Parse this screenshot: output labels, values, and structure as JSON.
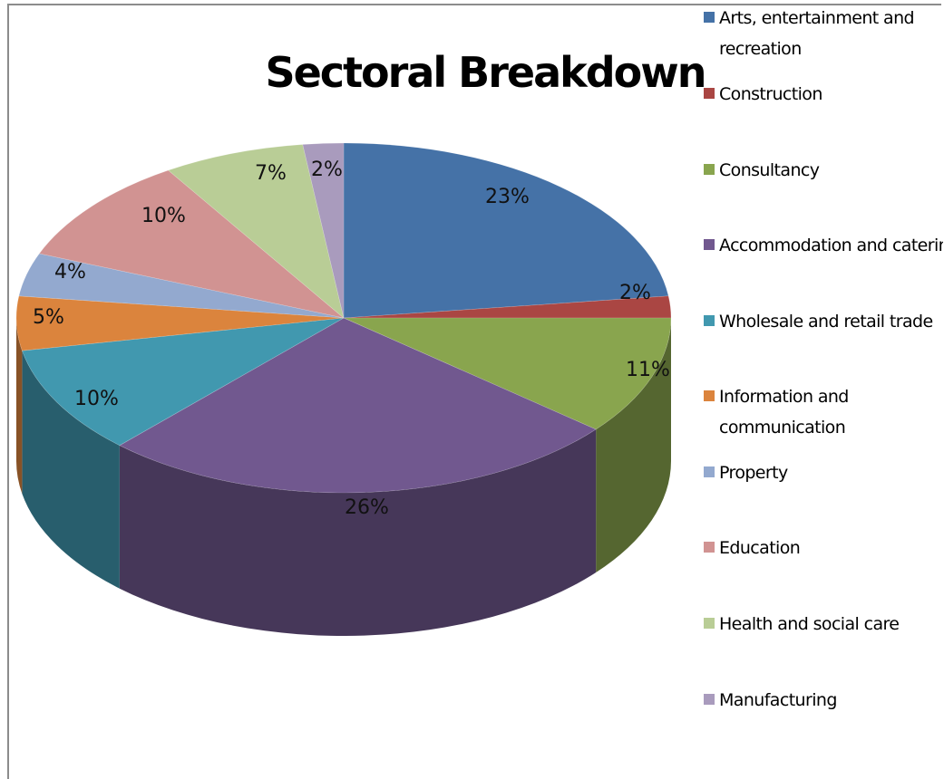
{
  "chart_data": {
    "type": "pie",
    "title": "Sectoral Breakdown",
    "categories": [
      "Arts, entertainment and recreation",
      "Construction",
      "Consultancy",
      "Accommodation and catering",
      "Wholesale and retail trade",
      "Information and communication",
      "Property",
      "Education",
      "Health and social care",
      "Manufacturing"
    ],
    "values": [
      23,
      2,
      11,
      26,
      10,
      5,
      4,
      10,
      7,
      2
    ],
    "value_labels": [
      "23%",
      "2%",
      "11%",
      "26%",
      "10%",
      "5%",
      "4%",
      "10%",
      "7%",
      "2%"
    ],
    "legend_lines": [
      [
        "Arts, entertainment and",
        "recreation"
      ],
      [
        "Construction"
      ],
      [
        "Consultancy"
      ],
      [
        "Accommodation and catering"
      ],
      [
        "Wholesale and retail trade"
      ],
      [
        "Information and",
        "communication"
      ],
      [
        "Property"
      ],
      [
        "Education"
      ],
      [
        "Health and social care"
      ],
      [
        "Manufacturing"
      ]
    ],
    "colors": [
      "#4572a7",
      "#aa4643",
      "#89a54e",
      "#71588f",
      "#4198af",
      "#db843d",
      "#93a9cf",
      "#d19392",
      "#b9cd96",
      "#a99bbd"
    ],
    "legend_position": "right",
    "style": "3d-pie"
  }
}
